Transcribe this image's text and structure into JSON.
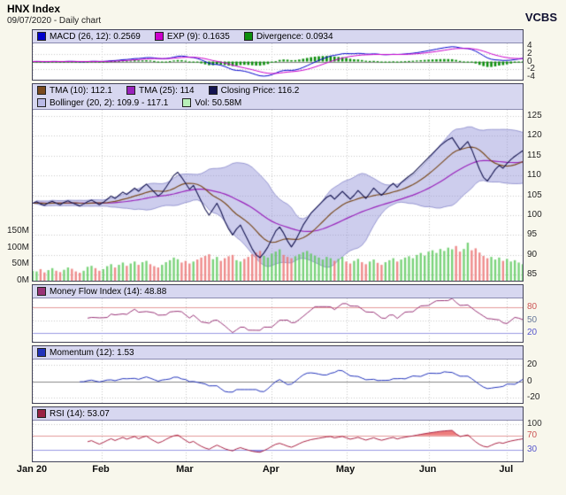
{
  "header": {
    "title": "HNX Index",
    "subtitle": "09/07/2020 - Daily chart",
    "brand": "VCBS"
  },
  "panels": {
    "macd": {
      "legend": [
        {
          "label": "MACD (26, 12): 0.2569",
          "color": "#0000cc"
        },
        {
          "label": "EXP (9): 0.1635",
          "color": "#cc00cc"
        },
        {
          "label": "Divergence: 0.0934",
          "color": "#0d8f0d"
        }
      ],
      "yticks": [
        {
          "label": "4",
          "v": 4
        },
        {
          "label": "2",
          "v": 2
        },
        {
          "label": "0",
          "v": 0
        },
        {
          "label": "-2",
          "v": -2
        },
        {
          "label": "-4",
          "v": -4
        }
      ]
    },
    "price": {
      "legend_row1": [
        {
          "label": "TMA (10): 112.1",
          "color": "#7a4a1e"
        },
        {
          "label": "TMA (25): 114",
          "color": "#9922bb"
        },
        {
          "label": "Closing Price: 116.2",
          "color": "#141450"
        }
      ],
      "legend_row2": [
        {
          "label": "Bollinger (20, 2): 109.9 - 117.1",
          "color": "#b9b9e6"
        },
        {
          "label": "Vol: 50.58M",
          "color": "#b8f0b8"
        }
      ],
      "yticks": [
        {
          "label": "125",
          "v": 125
        },
        {
          "label": "120",
          "v": 120
        },
        {
          "label": "115",
          "v": 115
        },
        {
          "label": "110",
          "v": 110
        },
        {
          "label": "105",
          "v": 105
        },
        {
          "label": "100",
          "v": 100
        },
        {
          "label": "95",
          "v": 95
        },
        {
          "label": "90",
          "v": 90
        },
        {
          "label": "85",
          "v": 85
        }
      ],
      "vol_ticks": [
        {
          "label": "150M",
          "v": 150
        },
        {
          "label": "100M",
          "v": 100
        },
        {
          "label": "50M",
          "v": 50
        },
        {
          "label": "0M",
          "v": 0
        }
      ]
    },
    "mfi": {
      "legend": [
        {
          "label": "Money Flow Index (14): 48.88",
          "color": "#993377"
        }
      ],
      "yticks": [
        {
          "label": "80",
          "v": 80,
          "color": "#cc5555"
        },
        {
          "label": "50",
          "v": 50,
          "color": "#667799"
        },
        {
          "label": "20",
          "v": 20,
          "color": "#5555cc"
        }
      ]
    },
    "momentum": {
      "legend": [
        {
          "label": "Momentum (12): 1.53",
          "color": "#2233bb"
        }
      ],
      "yticks": [
        {
          "label": "20",
          "v": 20
        },
        {
          "label": "0",
          "v": 0
        },
        {
          "label": "-20",
          "v": -20
        }
      ]
    },
    "rsi": {
      "legend": [
        {
          "label": "RSI (14): 53.07",
          "color": "#992244"
        }
      ],
      "yticks": [
        {
          "label": "100",
          "v": 100,
          "color": "#333333"
        },
        {
          "label": "70",
          "v": 70,
          "color": "#cc5555"
        },
        {
          "label": "30",
          "v": 30,
          "color": "#5555cc"
        }
      ]
    }
  },
  "x_axis": {
    "labels": [
      {
        "text": "Jan 20",
        "i": 0
      },
      {
        "text": "Feb",
        "i": 17.6
      },
      {
        "text": "Mar",
        "i": 39
      },
      {
        "text": "Apr",
        "i": 61
      },
      {
        "text": "May",
        "i": 80
      },
      {
        "text": "Jun",
        "i": 101
      },
      {
        "text": "Jul",
        "i": 121
      }
    ]
  },
  "chart_data": {
    "type": "line",
    "title": "HNX Index - Daily chart (09/07/2020)",
    "x_range": "Jan 20 2020 to early Jul 2020, daily bars",
    "panels": [
      {
        "name": "MACD",
        "type": "line",
        "series_labels": [
          "MACD (26, 12)",
          "EXP (9)",
          "Divergence"
        ],
        "last_values": [
          0.2569,
          0.1635,
          0.0934
        ],
        "ylim": [
          -4.8,
          4.8
        ]
      },
      {
        "name": "Price",
        "type": "line",
        "series_labels": [
          "TMA (10)",
          "TMA (25)",
          "Closing Price",
          "Bollinger (20, 2)",
          "Volume"
        ],
        "last_values": [
          112.1,
          114,
          116.2,
          "109.9 - 117.1",
          "50.58M"
        ],
        "ylim": [
          83.5,
          126.5
        ]
      },
      {
        "name": "Money Flow Index (14)",
        "type": "line",
        "last_values": [
          48.88
        ],
        "ylim": [
          0,
          100
        ],
        "levels": [
          20,
          50,
          80
        ]
      },
      {
        "name": "Momentum (12)",
        "type": "line",
        "last_values": [
          1.53
        ],
        "ylim": [
          -26,
          26
        ],
        "levels": [
          -20,
          0,
          20
        ]
      },
      {
        "name": "RSI (14)",
        "type": "line",
        "last_values": [
          53.07
        ],
        "ylim": [
          0,
          110
        ],
        "levels": [
          30,
          70
        ]
      }
    ],
    "series": {
      "close": [
        103.0,
        103.4,
        102.8,
        102.5,
        103.1,
        103.5,
        103.0,
        102.6,
        103.2,
        103.6,
        103.1,
        102.7,
        102.3,
        102.8,
        103.4,
        103.8,
        103.2,
        102.6,
        103.2,
        104.0,
        104.8,
        104.2,
        105.0,
        105.8,
        105.2,
        106.0,
        106.8,
        106.0,
        107.0,
        107.8,
        106.8,
        105.8,
        104.8,
        105.6,
        107.0,
        108.5,
        110.0,
        110.8,
        109.5,
        108.0,
        106.5,
        107.5,
        105.5,
        103.5,
        101.5,
        100.0,
        101.5,
        103.0,
        101.0,
        98.5,
        96.5,
        95.0,
        96.5,
        97.5,
        95.5,
        93.5,
        91.5,
        90.0,
        89.3,
        90.5,
        92.0,
        94.0,
        96.0,
        97.0,
        95.5,
        93.5,
        92.0,
        93.5,
        95.5,
        97.5,
        99.0,
        100.5,
        101.5,
        102.5,
        103.5,
        104.5,
        105.0,
        104.0,
        105.0,
        106.0,
        105.0,
        104.0,
        105.0,
        106.2,
        105.2,
        104.2,
        105.5,
        106.8,
        105.8,
        105.0,
        106.0,
        107.2,
        108.0,
        107.0,
        108.2,
        109.0,
        109.8,
        110.5,
        111.5,
        112.5,
        113.5,
        114.5,
        115.5,
        116.5,
        117.5,
        118.3,
        119.0,
        119.5,
        118.0,
        116.5,
        117.5,
        118.5,
        116.5,
        114.0,
        111.5,
        109.5,
        108.6,
        110.0,
        111.5,
        112.5,
        111.8,
        113.0,
        114.0,
        114.8,
        115.5,
        116.2
      ],
      "volume_m": [
        30,
        28,
        35,
        25,
        32,
        38,
        30,
        26,
        33,
        40,
        36,
        28,
        24,
        30,
        42,
        45,
        38,
        30,
        35,
        44,
        50,
        40,
        48,
        55,
        45,
        52,
        58,
        48,
        56,
        60,
        50,
        44,
        40,
        48,
        56,
        62,
        70,
        65,
        55,
        60,
        52,
        58,
        64,
        70,
        75,
        80,
        65,
        72,
        60,
        68,
        74,
        78,
        62,
        58,
        66,
        72,
        80,
        85,
        90,
        75,
        70,
        82,
        88,
        95,
        78,
        72,
        68,
        74,
        80,
        86,
        90,
        82,
        76,
        70,
        64,
        72,
        68,
        60,
        66,
        72,
        58,
        52,
        60,
        66,
        56,
        50,
        58,
        64,
        54,
        48,
        56,
        62,
        68,
        58,
        64,
        70,
        74,
        68,
        78,
        84,
        76,
        88,
        92,
        84,
        96,
        90,
        100,
        95,
        105,
        88,
        96,
        115,
        92,
        98,
        85,
        75,
        68,
        72,
        64,
        70,
        60,
        66,
        58,
        62,
        55,
        50
      ]
    },
    "style": {
      "macd_line": "#0000cc",
      "exp_line": "#cc00cc",
      "divergence_bar": "#0d8f0d",
      "tma10": "#7a4a1e",
      "tma25": "#9922bb",
      "close": "#141450",
      "band_fill": "rgba(145,145,215,0.45)",
      "band_edge": "rgba(110,110,190,0.8)",
      "vol_up": "rgba(90,200,90,0.8)",
      "vol_down": "rgba(235,120,120,0.85)",
      "mfi_line": "#993377",
      "momentum_line": "#2233bb",
      "rsi_line": "#aa2244",
      "rsi_over_fill": "rgba(230,70,70,0.7)",
      "rsi_under_fill": "rgba(90,90,220,0.65)",
      "level_red": "#e39a9a",
      "level_blue": "#9a9ae3",
      "grid": "#c8c8c8",
      "zero": "#888888",
      "legend_bg": "#d7d7f0",
      "page_bg": "#f8f7ec"
    }
  }
}
